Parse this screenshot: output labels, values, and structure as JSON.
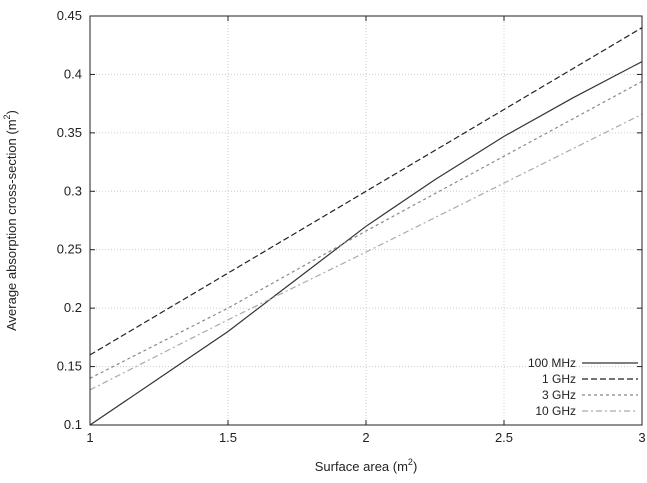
{
  "chart_data": {
    "type": "line",
    "title": "",
    "xlabel": "Surface area (m",
    "xlabel_sup": "2",
    "xlabel_tail": ")",
    "ylabel": "Average absorption cross-section (m",
    "ylabel_sup": "2",
    "ylabel_tail": ")",
    "xlim": [
      1,
      3
    ],
    "ylim": [
      0.1,
      0.45
    ],
    "x_ticks": [
      1,
      1.5,
      2,
      2.5,
      3
    ],
    "x_tick_labels": [
      "1",
      "1.5",
      "2",
      "2.5",
      "3"
    ],
    "y_ticks": [
      0.1,
      0.15,
      0.2,
      0.25,
      0.3,
      0.35,
      0.4,
      0.45
    ],
    "y_tick_labels": [
      "0.1",
      "0.15",
      "0.2",
      "0.25",
      "0.3",
      "0.35",
      "0.4",
      "0.45"
    ],
    "grid": true,
    "legend_position": "bottom-right",
    "series": [
      {
        "name": "100 MHz",
        "color": "#333333",
        "dash": "solid",
        "x": [
          1,
          1.25,
          1.5,
          1.75,
          2,
          2.25,
          2.5,
          2.75,
          3
        ],
        "y": [
          0.1,
          0.14,
          0.18,
          0.225,
          0.27,
          0.31,
          0.347,
          0.38,
          0.411
        ]
      },
      {
        "name": "1 GHz",
        "color": "#222222",
        "dash": "dashed",
        "x": [
          1,
          1.5,
          2,
          2.5,
          3
        ],
        "y": [
          0.16,
          0.23,
          0.3,
          0.37,
          0.44
        ]
      },
      {
        "name": "3 GHz",
        "color": "#888888",
        "dash": "dotted",
        "x": [
          1,
          1.5,
          2,
          2.5,
          3
        ],
        "y": [
          0.14,
          0.2,
          0.266,
          0.33,
          0.394
        ]
      },
      {
        "name": "10 GHz",
        "color": "#aaaaaa",
        "dash": "dashdot",
        "x": [
          1,
          1.5,
          2,
          2.5,
          3
        ],
        "y": [
          0.13,
          0.19,
          0.248,
          0.307,
          0.366
        ]
      }
    ]
  }
}
